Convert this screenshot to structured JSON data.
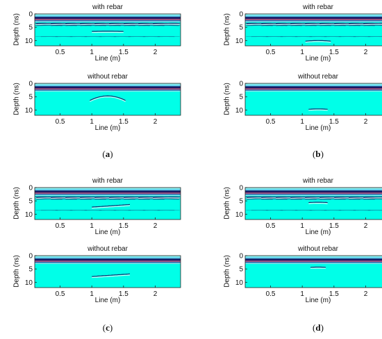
{
  "chart_data": [
    {
      "panel": "a",
      "caption_letter": "a",
      "plots": [
        {
          "type": "heatmap",
          "title": "with rebar",
          "xlabel": "Line (m)",
          "ylabel": "Depth (ns)",
          "xlim": [
            0.1,
            2.4
          ],
          "ylim": [
            12,
            0
          ],
          "xticks": [
            0.5,
            1,
            1.5,
            2
          ],
          "yticks": [
            0,
            5,
            10
          ],
          "rebar_hyperbolas": true,
          "hyperbola_apex_depth": 3.5,
          "hyperbola_count": 10,
          "target": {
            "x_center": 1.25,
            "depth": 6.5,
            "half_width": 0.25,
            "curvature": "flat"
          }
        },
        {
          "type": "heatmap",
          "title": "without rebar",
          "xlabel": "Line (m)",
          "ylabel": "Depth (ns)",
          "xlim": [
            0.1,
            2.4
          ],
          "ylim": [
            12,
            0
          ],
          "xticks": [
            0.5,
            1,
            1.5,
            2
          ],
          "yticks": [
            0,
            5,
            10
          ],
          "rebar_hyperbolas": false,
          "target": {
            "x_center": 1.25,
            "depth": 4.7,
            "half_width": 0.28,
            "curvature": "hyperbola"
          }
        }
      ]
    },
    {
      "panel": "b",
      "caption_letter": "b",
      "plots": [
        {
          "type": "heatmap",
          "title": "with rebar",
          "xlabel": "Line (m)",
          "ylabel": "Depth (ns)",
          "xlim": [
            0.1,
            2.4
          ],
          "ylim": [
            12,
            0
          ],
          "xticks": [
            0.5,
            1,
            1.5,
            2
          ],
          "yticks": [
            0,
            5,
            10
          ],
          "rebar_hyperbolas": true,
          "hyperbola_apex_depth": 3.5,
          "hyperbola_count": 10,
          "target": {
            "x_center": 1.25,
            "depth": 10,
            "half_width": 0.2,
            "curvature": "small"
          }
        },
        {
          "type": "heatmap",
          "title": "without rebar",
          "xlabel": "Line (m)",
          "ylabel": "Depth (ns)",
          "xlim": [
            0.1,
            2.4
          ],
          "ylim": [
            12,
            0
          ],
          "xticks": [
            0.5,
            1,
            1.5,
            2
          ],
          "yticks": [
            0,
            5,
            10
          ],
          "rebar_hyperbolas": false,
          "target": {
            "x_center": 1.25,
            "depth": 9.6,
            "half_width": 0.15,
            "curvature": "small"
          }
        }
      ]
    },
    {
      "panel": "c",
      "caption_letter": "c",
      "plots": [
        {
          "type": "heatmap",
          "title": "with rebar",
          "xlabel": "Line (m)",
          "ylabel": "Depth (ns)",
          "xlim": [
            0.1,
            2.4
          ],
          "ylim": [
            12,
            0
          ],
          "xticks": [
            0.5,
            1,
            1.5,
            2
          ],
          "yticks": [
            0,
            5,
            10
          ],
          "rebar_hyperbolas": true,
          "hyperbola_apex_depth": 3.5,
          "hyperbola_count": 10,
          "target": {
            "x_center": 1.3,
            "depth": 6.5,
            "half_width": 0.3,
            "curvature": "tilted"
          }
        },
        {
          "type": "heatmap",
          "title": "without rebar",
          "xlabel": "Line (m)",
          "ylabel": "Depth (ns)",
          "xlim": [
            0.1,
            2.4
          ],
          "ylim": [
            12,
            0
          ],
          "xticks": [
            0.5,
            1,
            1.5,
            2
          ],
          "yticks": [
            0,
            5,
            10
          ],
          "rebar_hyperbolas": false,
          "target": {
            "x_center": 1.3,
            "depth": 7.0,
            "half_width": 0.3,
            "curvature": "tilted"
          }
        }
      ]
    },
    {
      "panel": "d",
      "caption_letter": "d",
      "plots": [
        {
          "type": "heatmap",
          "title": "with rebar",
          "xlabel": "Line (m)",
          "ylabel": "Depth (ns)",
          "xlim": [
            0.1,
            2.4
          ],
          "ylim": [
            12,
            0
          ],
          "xticks": [
            0.5,
            1,
            1.5,
            2
          ],
          "yticks": [
            0,
            5,
            10
          ],
          "rebar_hyperbolas": true,
          "hyperbola_apex_depth": 3.5,
          "hyperbola_count": 10,
          "target": {
            "x_center": 1.25,
            "depth": 5.5,
            "half_width": 0.15,
            "curvature": "small"
          }
        },
        {
          "type": "heatmap",
          "title": "without rebar",
          "xlabel": "Line (m)",
          "ylabel": "Depth (ns)",
          "xlim": [
            0.1,
            2.4
          ],
          "ylim": [
            12,
            0
          ],
          "xticks": [
            0.5,
            1,
            1.5,
            2
          ],
          "yticks": [
            0,
            5,
            10
          ],
          "rebar_hyperbolas": false,
          "target": {
            "x_center": 1.25,
            "depth": 4.3,
            "half_width": 0.12,
            "curvature": "small"
          }
        }
      ]
    }
  ],
  "colors": {
    "background": "#00ffe8",
    "surface_dark": "#1a1a66",
    "surface_red": "#cc3366",
    "surface_light": "#8ff0f0",
    "reflection_dark": "#123070",
    "reflection_light": "#cffff7"
  }
}
